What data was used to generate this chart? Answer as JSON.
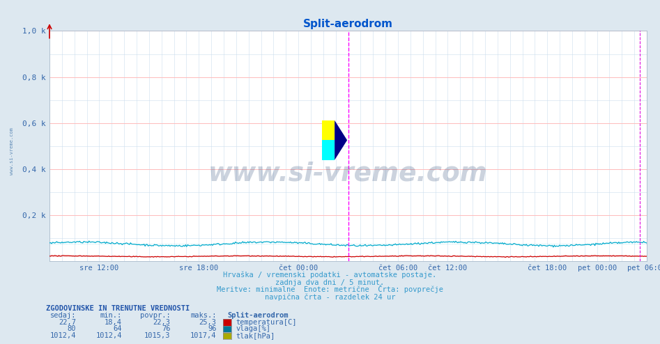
{
  "title": "Split-aerodrom",
  "title_color": "#0055cc",
  "bg_color": "#dde8f0",
  "plot_bg_color": "#ffffff",
  "grid_major_h_color": "#ffbbbb",
  "grid_minor_color": "#ccddee",
  "x_tick_labels": [
    "sre 12:00",
    "sre 18:00",
    "čet 00:00",
    "čet 06:00",
    "čet 12:00",
    "čet 18:00",
    "pet 00:00",
    "pet 06:00"
  ],
  "x_tick_pos": [
    0.0833,
    0.25,
    0.4167,
    0.5833,
    0.6667,
    0.8333,
    0.9167,
    1.0
  ],
  "y_tick_labels": [
    "",
    "0,2 k",
    "0,4 k",
    "0,6 k",
    "0,8 k",
    "1,0 k"
  ],
  "y_tick_values": [
    0,
    0.2,
    0.4,
    0.6,
    0.8,
    1.0
  ],
  "temp_color": "#cc0000",
  "hum_color": "#00aacc",
  "pres_color": "#aaaa00",
  "vline_color": "#ff00ff",
  "vline_x": 0.5,
  "watermark": "www.si-vreme.com",
  "watermark_color": "#1a3a6a",
  "subtitle_lines": [
    "Hrvaška / vremenski podatki - avtomatske postaje.",
    "zadnja dva dni / 5 minut.",
    "Meritve: minimalne  Enote: metrične  Črta: povprečje",
    "navpična črta - razdelek 24 ur"
  ],
  "subtitle_color": "#3399cc",
  "legend_title": "ZGODOVINSKE IN TRENUTNE VREDNOSTI",
  "legend_station": "Split-aerodrom",
  "legend_rows": [
    {
      "values": [
        "22,7",
        "18,4",
        "22,3",
        "25,3"
      ],
      "color": "#cc0000",
      "label": "temperatura[C]"
    },
    {
      "values": [
        "80",
        "64",
        "76",
        "96"
      ],
      "color": "#007799",
      "label": "vlaga[%]"
    },
    {
      "values": [
        "1012,4",
        "1012,4",
        "1015,3",
        "1017,4"
      ],
      "color": "#aaaa00",
      "label": "tlak[hPa]"
    }
  ],
  "n_points": 576
}
